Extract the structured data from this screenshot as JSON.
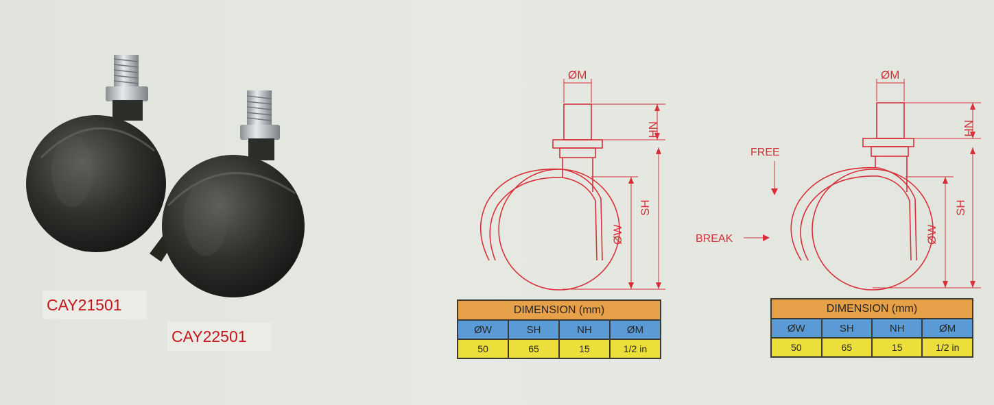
{
  "products": [
    {
      "model": "CAY21501"
    },
    {
      "model": "CAY22501"
    }
  ],
  "drawing_labels": {
    "stem_diameter": "ØM",
    "neck_height": "NH",
    "swivel_height": "SH",
    "wheel_diameter": "ØW",
    "free": "FREE",
    "break": "BREAK"
  },
  "tables": [
    {
      "title": "DIMENSION (mm)",
      "headers": [
        "ØW",
        "SH",
        "NH",
        "ØM"
      ],
      "values": [
        "50",
        "65",
        "15",
        "1/2 in"
      ]
    },
    {
      "title": "DIMENSION (mm)",
      "headers": [
        "ØW",
        "SH",
        "NH",
        "ØM"
      ],
      "values": [
        "50",
        "65",
        "15",
        "1/2 in"
      ]
    }
  ],
  "colors": {
    "drawing_line": "#d8303a",
    "table_header": "#e6a047",
    "table_labels": "#5a9ad6",
    "table_values": "#ecdf3c",
    "model_text": "#c4161c"
  }
}
